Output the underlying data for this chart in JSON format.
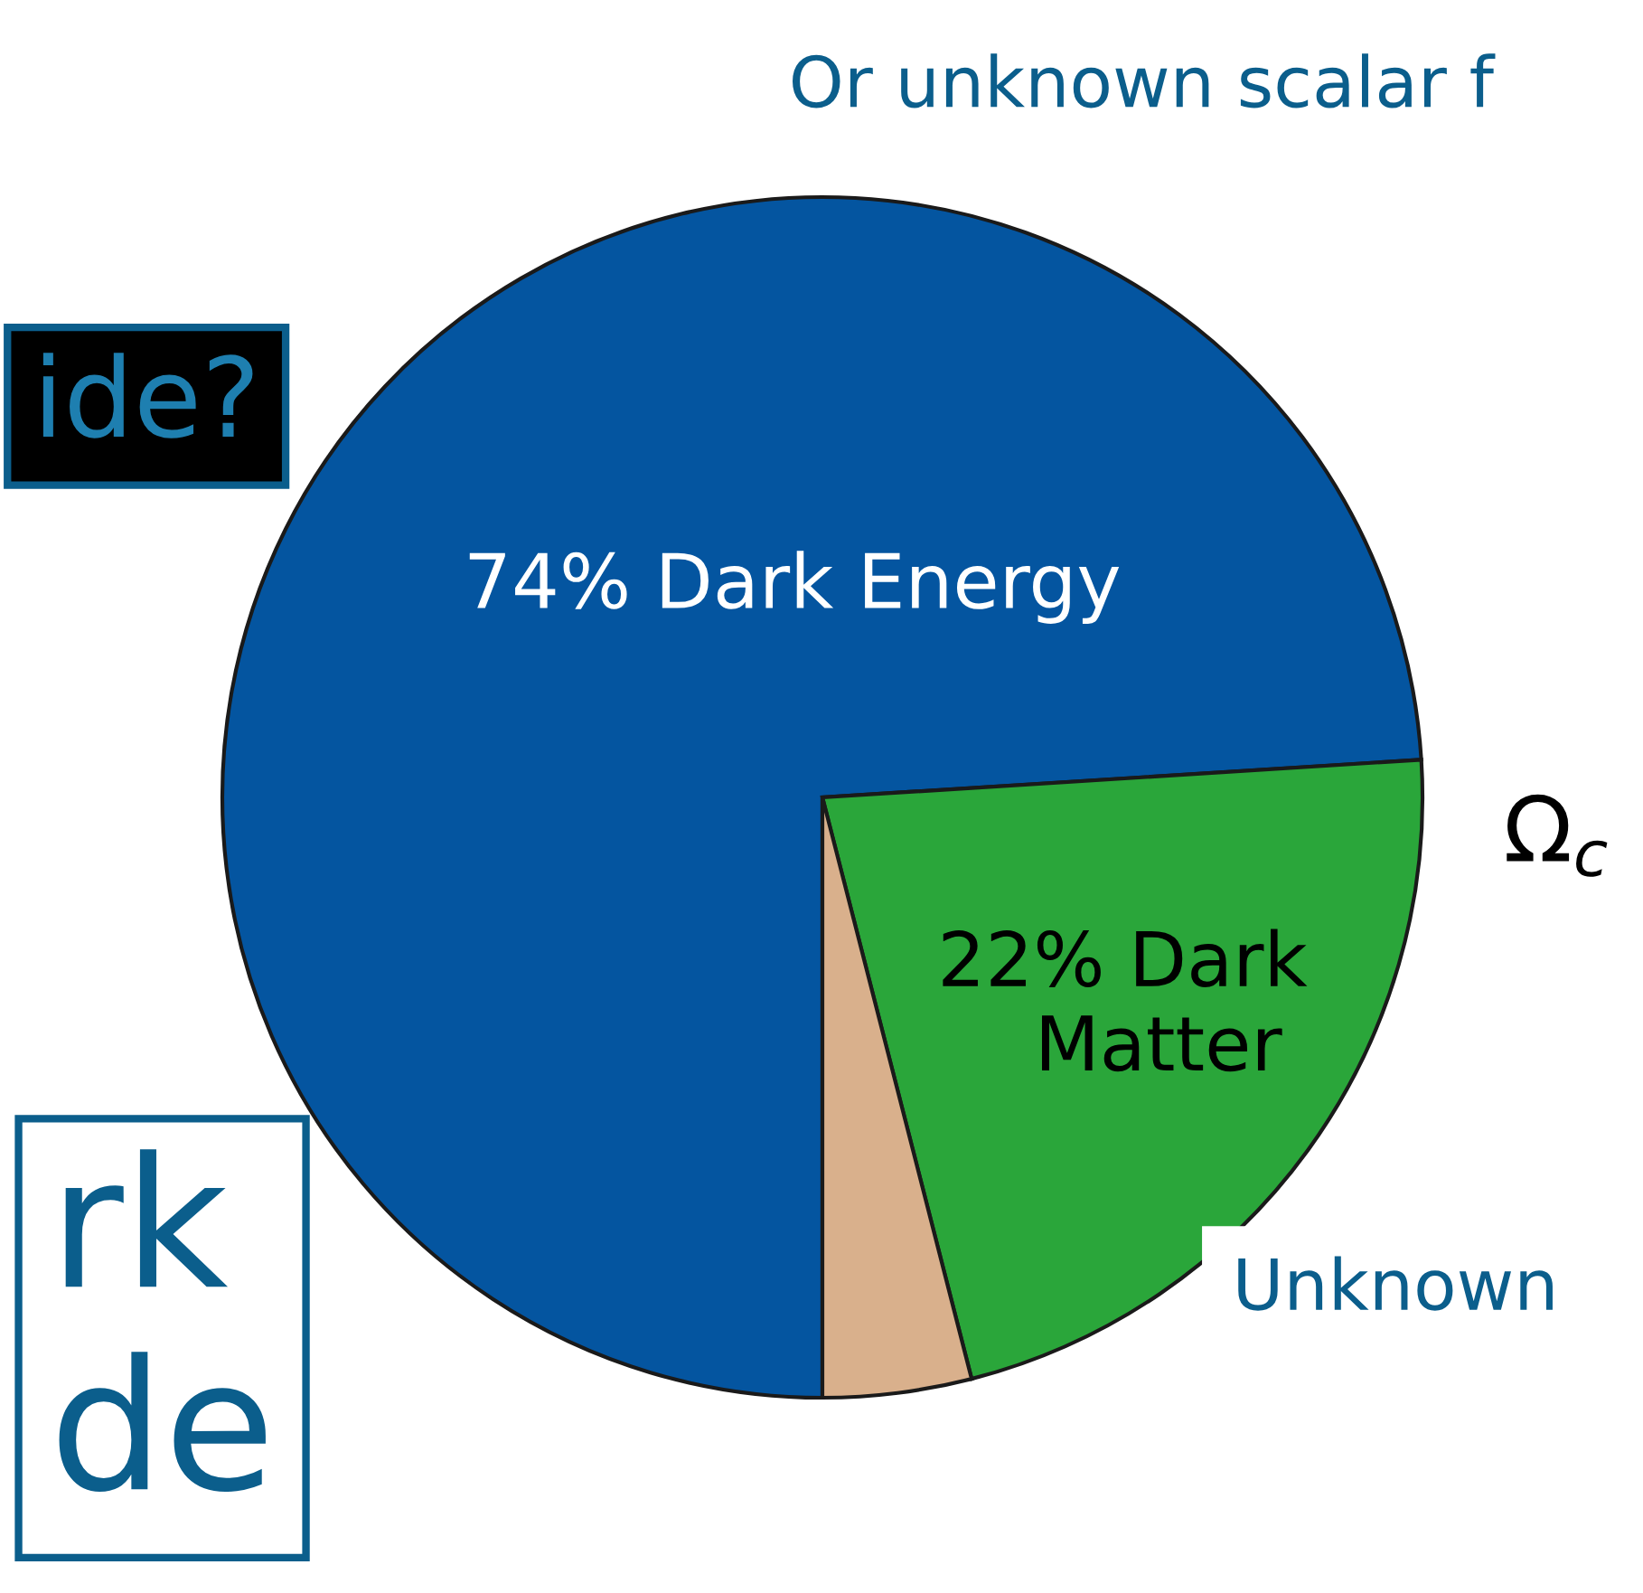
{
  "chart_data": {
    "type": "pie",
    "categories": [
      null,
      null,
      null
    ],
    "values": [
      74,
      22,
      4
    ],
    "colors": [
      "#0455a0",
      "#2aa63a",
      "#d9b08c"
    ],
    "value_labels": [
      "74% Dark Energy",
      "22% Dark\n   Matter",
      null
    ],
    "annotations": [
      "Or unknown scalar f",
      "ide?",
      "Unknown",
      "rk\nde",
      "Ω$_{c}$"
    ]
  }
}
